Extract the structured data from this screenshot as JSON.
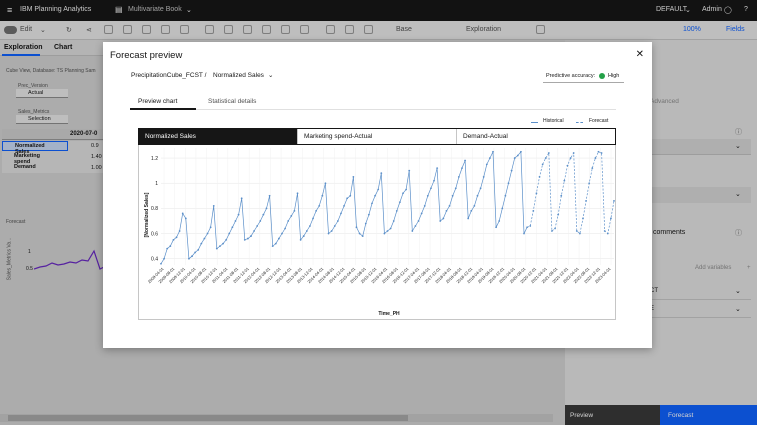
{
  "app": {
    "name": "IBM Planning Analytics",
    "book": "Multivariate Book",
    "env": "DEFAULT",
    "user": "Admin"
  },
  "toolbar": {
    "edit": "Edit",
    "base": "Base",
    "mode": "Exploration",
    "zoom": "100%",
    "fields": "Fields"
  },
  "left": {
    "tab_exploration": "Exploration",
    "tab_chart": "Chart",
    "cube_view": "Cube View, Database: TS Planning Sam",
    "filter1_label": "Prec_Version",
    "filter1_value": "Actual",
    "filter2_label": "Sales_Metrics",
    "filter2_value": "Selection",
    "col_header": "2020-07-0",
    "rows": [
      "Normalized Sales",
      "Marketing spend",
      "Demand"
    ],
    "row_values": [
      "0.9",
      "1.40",
      "1.00"
    ],
    "mini_legend": "Forecast",
    "mini_ylabel": "Sales_Metrics Va...",
    "mini_yticks": [
      "1",
      "0.5"
    ]
  },
  "right": {
    "advanced": "Advanced",
    "comments": "comments",
    "add_variables": "Add variables",
    "row1": "CT",
    "row2": "E"
  },
  "bottom": {
    "preview": "Preview",
    "forecast": "Forecast"
  },
  "modal": {
    "title": "Forecast preview",
    "cube": "PrecipitationCube_FCST /",
    "measure": "Normalized Sales",
    "accuracy_label": "Predictive accuracy:",
    "accuracy_value": "High",
    "tabs": [
      "Preview chart",
      "Statistical details"
    ],
    "legend": {
      "historical": "Historical",
      "forecast": "Forecast"
    },
    "series_tabs": [
      "Normalized Sales",
      "Marketing spend-Actual",
      "Demand-Actual"
    ]
  },
  "colors": {
    "accent": "#0f62fe",
    "line": "#5b8fc9",
    "success": "#24a148"
  },
  "chart_data": {
    "type": "line",
    "xlabel": "Time_PH",
    "ylabel": "[Normalized Sales]",
    "yticks": [
      "0.4",
      "0.6",
      "0.8",
      "1",
      "1.2"
    ],
    "ylim": [
      0.35,
      1.28
    ],
    "xticks": [
      "2009-04-01",
      "2009-08-01",
      "2009-12-01",
      "2010-04-01",
      "2010-08-01",
      "2010-12-01",
      "2011-04-01",
      "2011-08-01",
      "2011-12-01",
      "2012-04-01",
      "2012-08-01",
      "2012-12-01",
      "2013-04-01",
      "2013-08-01",
      "2013-12-01",
      "2014-04-01",
      "2014-08-01",
      "2014-12-01",
      "2015-04-01",
      "2015-08-01",
      "2015-12-01",
      "2016-04-01",
      "2016-08-01",
      "2016-12-01",
      "2017-04-01",
      "2017-08-01",
      "2017-12-01",
      "2018-04-01",
      "2018-08-01",
      "2018-12-01",
      "2019-04-01",
      "2019-08-01",
      "2019-12-01",
      "2020-04-01",
      "2020-08-01",
      "2020-12-01",
      "2021-04-01",
      "2021-08-01",
      "2021-12-01",
      "2022-04-01",
      "2022-08-01",
      "2022-12-01",
      "2023-04-01"
    ],
    "series": [
      {
        "name": "Historical",
        "values": [
          0.36,
          0.4,
          0.48,
          0.5,
          0.55,
          0.57,
          0.62,
          0.76,
          0.72,
          0.4,
          0.42,
          0.45,
          0.47,
          0.52,
          0.56,
          0.6,
          0.65,
          0.82,
          0.48,
          0.5,
          0.52,
          0.55,
          0.6,
          0.65,
          0.7,
          0.75,
          0.88,
          0.55,
          0.56,
          0.58,
          0.62,
          0.66,
          0.7,
          0.75,
          0.8,
          0.9,
          0.5,
          0.52,
          0.56,
          0.6,
          0.64,
          0.7,
          0.74,
          0.78,
          0.92,
          0.55,
          0.58,
          0.62,
          0.66,
          0.72,
          0.78,
          0.82,
          0.9,
          1.0,
          0.6,
          0.62,
          0.66,
          0.7,
          0.76,
          0.82,
          0.88,
          0.9,
          1.05,
          0.65,
          0.6,
          0.58,
          0.68,
          0.75,
          0.84,
          0.9,
          0.95,
          1.08,
          0.6,
          0.62,
          0.64,
          0.7,
          0.78,
          0.85,
          0.92,
          0.95,
          1.1,
          0.62,
          0.66,
          0.7,
          0.76,
          0.82,
          0.9,
          0.96,
          1.02,
          1.12,
          0.7,
          0.72,
          0.78,
          0.82,
          0.9,
          0.96,
          1.05,
          1.12,
          1.18,
          0.72,
          0.78,
          0.82,
          0.9,
          0.96,
          1.05,
          1.15,
          1.2,
          1.25,
          0.65,
          0.7,
          0.8,
          0.9,
          1.0,
          1.1,
          1.2,
          1.22,
          1.25,
          0.6,
          0.65
        ]
      },
      {
        "name": "Forecast",
        "values": [
          0.66,
          0.78,
          0.92,
          1.05,
          1.15,
          1.2,
          1.24,
          0.62,
          0.64,
          0.75,
          0.9,
          1.02,
          1.14,
          1.2,
          1.24,
          0.62,
          0.6,
          0.72,
          0.86,
          1.0,
          1.12,
          1.2,
          1.25,
          1.24,
          0.62,
          0.6,
          0.72,
          0.86
        ]
      }
    ]
  }
}
